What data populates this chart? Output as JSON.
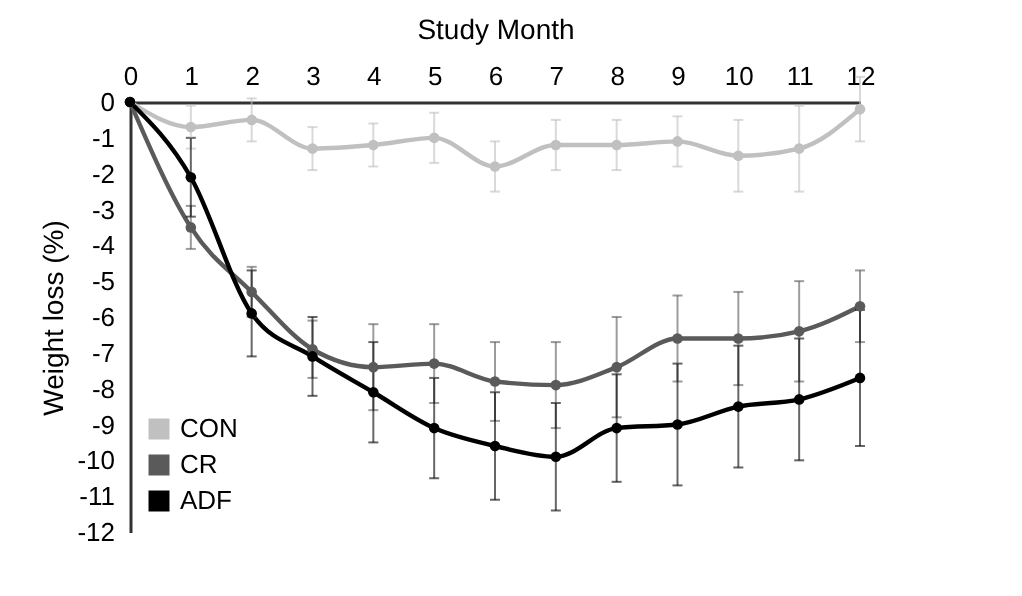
{
  "chart_data": {
    "type": "line",
    "xlabel": "Study Month",
    "ylabel": "Weight loss (%)",
    "x": [
      0,
      1,
      2,
      3,
      4,
      5,
      6,
      7,
      8,
      9,
      10,
      11,
      12
    ],
    "series": [
      {
        "name": "CON",
        "color": "#c0c0c0",
        "values": [
          0,
          -0.7,
          -0.5,
          -1.3,
          -1.2,
          -1.0,
          -1.8,
          -1.2,
          -1.2,
          -1.1,
          -1.5,
          -1.3,
          -0.2
        ],
        "errors": [
          null,
          0.6,
          0.6,
          0.6,
          0.6,
          0.7,
          0.7,
          0.7,
          0.7,
          0.7,
          1.0,
          1.2,
          0.9
        ]
      },
      {
        "name": "CR",
        "color": "#5a5a5a",
        "values": [
          0,
          -3.5,
          -5.3,
          -6.9,
          -7.4,
          -7.3,
          -7.8,
          -7.9,
          -7.4,
          -6.6,
          -6.6,
          -6.4,
          -5.7
        ],
        "errors": [
          null,
          0.6,
          0.7,
          0.8,
          1.2,
          1.1,
          1.1,
          1.2,
          1.4,
          1.2,
          1.3,
          1.4,
          1.0
        ]
      },
      {
        "name": "ADF",
        "color": "#000000",
        "values": [
          0,
          -2.1,
          -5.9,
          -7.1,
          -8.1,
          -9.1,
          -9.6,
          -9.9,
          -9.1,
          -9.0,
          -8.5,
          -8.3,
          -7.7
        ],
        "errors": [
          null,
          1.1,
          1.2,
          1.1,
          1.4,
          1.4,
          1.5,
          1.5,
          1.5,
          1.7,
          1.7,
          1.7,
          1.9
        ]
      }
    ],
    "xlim": [
      0,
      12
    ],
    "xticks": [
      0,
      1,
      2,
      3,
      4,
      5,
      6,
      7,
      8,
      9,
      10,
      11,
      12
    ],
    "ylim": [
      -12,
      0
    ],
    "yticks": [
      -12,
      -11,
      -10,
      -9,
      -8,
      -7,
      -6,
      -5,
      -4,
      -3,
      -2,
      -1,
      0
    ],
    "grid": false,
    "legend": "bottom left",
    "marker": "circle",
    "line_style": "solid"
  }
}
